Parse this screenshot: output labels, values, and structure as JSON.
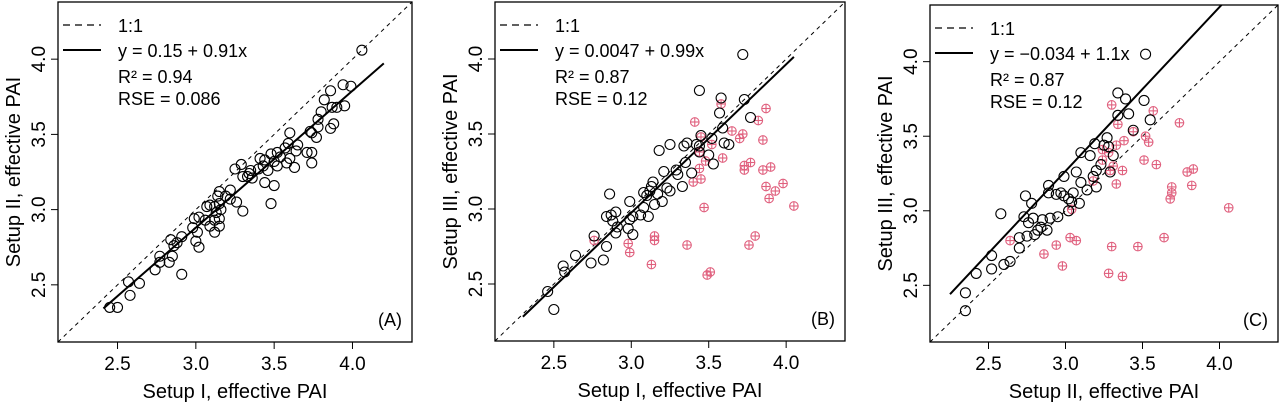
{
  "chart_data": [
    {
      "type": "scatter",
      "panel_label": "(A)",
      "xlabel": "Setup I, effective PAI",
      "ylabel": "Setup II, effective PAI",
      "xlim": [
        2.12,
        4.38
      ],
      "ylim": [
        2.12,
        4.38
      ],
      "xticks": [
        "2.5",
        "3.0",
        "3.5",
        "4.0"
      ],
      "yticks": [
        "2.5",
        "3.0",
        "3.5",
        "4.0"
      ],
      "legend": {
        "placement": "top-left",
        "entries": [
          "1:1",
          "y = 0.15 + 0.91x"
        ],
        "r2": "R² = 0.94",
        "rse": "RSE = 0.086"
      },
      "fit": {
        "intercept": 0.15,
        "slope": 0.91,
        "x_range": [
          2.41,
          4.2
        ]
      },
      "colors": {
        "points": "#000000",
        "flagged": "#e0607e"
      },
      "points": [
        [
          4.06,
          4.06
        ],
        [
          3.99,
          3.82
        ],
        [
          3.94,
          3.83
        ],
        [
          3.86,
          3.79
        ],
        [
          3.82,
          3.73
        ],
        [
          3.8,
          3.65
        ],
        [
          3.95,
          3.69
        ],
        [
          3.9,
          3.68
        ],
        [
          3.87,
          3.68
        ],
        [
          3.78,
          3.6
        ],
        [
          3.78,
          3.55
        ],
        [
          3.86,
          3.54
        ],
        [
          3.88,
          3.57
        ],
        [
          3.73,
          3.52
        ],
        [
          3.77,
          3.48
        ],
        [
          3.74,
          3.51
        ],
        [
          3.6,
          3.51
        ],
        [
          3.59,
          3.44
        ],
        [
          3.65,
          3.43
        ],
        [
          3.64,
          3.39
        ],
        [
          3.71,
          3.38
        ],
        [
          3.74,
          3.38
        ],
        [
          3.74,
          3.31
        ],
        [
          3.63,
          3.28
        ],
        [
          3.6,
          3.34
        ],
        [
          3.58,
          3.31
        ],
        [
          3.57,
          3.41
        ],
        [
          3.54,
          3.35
        ],
        [
          3.52,
          3.38
        ],
        [
          3.48,
          3.37
        ],
        [
          3.52,
          3.29
        ],
        [
          3.5,
          3.32
        ],
        [
          3.46,
          3.26
        ],
        [
          3.44,
          3.33
        ],
        [
          3.43,
          3.29
        ],
        [
          3.41,
          3.34
        ],
        [
          3.4,
          3.27
        ],
        [
          3.44,
          3.18
        ],
        [
          3.5,
          3.16
        ],
        [
          3.48,
          3.04
        ],
        [
          3.35,
          3.26
        ],
        [
          3.34,
          3.24
        ],
        [
          3.36,
          3.21
        ],
        [
          3.33,
          3.22
        ],
        [
          3.3,
          3.22
        ],
        [
          3.29,
          3.3
        ],
        [
          3.25,
          3.27
        ],
        [
          3.26,
          3.05
        ],
        [
          3.3,
          2.99
        ],
        [
          3.22,
          3.13
        ],
        [
          3.19,
          3.09
        ],
        [
          3.15,
          3.12
        ],
        [
          3.14,
          3.09
        ],
        [
          3.22,
          3.07
        ],
        [
          3.15,
          3.04
        ],
        [
          3.16,
          3.0
        ],
        [
          3.13,
          2.98
        ],
        [
          3.12,
          3.02
        ],
        [
          3.09,
          3.03
        ],
        [
          3.07,
          3.02
        ],
        [
          3.15,
          2.94
        ],
        [
          3.12,
          2.93
        ],
        [
          3.15,
          2.89
        ],
        [
          3.09,
          2.89
        ],
        [
          3.12,
          2.85
        ],
        [
          3.06,
          2.93
        ],
        [
          3.02,
          2.95
        ],
        [
          2.99,
          2.94
        ],
        [
          2.98,
          2.88
        ],
        [
          3.01,
          2.85
        ],
        [
          3.0,
          2.79
        ],
        [
          3.02,
          2.75
        ],
        [
          2.91,
          2.82
        ],
        [
          2.88,
          2.78
        ],
        [
          2.86,
          2.76
        ],
        [
          2.84,
          2.8
        ],
        [
          2.85,
          2.69
        ],
        [
          2.83,
          2.65
        ],
        [
          2.77,
          2.69
        ],
        [
          2.77,
          2.65
        ],
        [
          2.74,
          2.6
        ],
        [
          2.91,
          2.57
        ],
        [
          2.64,
          2.51
        ],
        [
          2.57,
          2.52
        ],
        [
          2.58,
          2.43
        ],
        [
          2.5,
          2.35
        ],
        [
          2.45,
          2.35
        ]
      ],
      "flagged_points": []
    },
    {
      "type": "scatter",
      "panel_label": "(B)",
      "xlabel": "Setup I, effective PAI",
      "ylabel": "Setup III, effective PAI",
      "xlim": [
        2.12,
        4.38
      ],
      "ylim": [
        2.12,
        4.38
      ],
      "xticks": [
        "2.5",
        "3.0",
        "3.5",
        "4.0"
      ],
      "yticks": [
        "2.5",
        "3.0",
        "3.5",
        "4.0"
      ],
      "legend": {
        "placement": "top-left",
        "entries": [
          "1:1",
          "y = 0.0047 + 0.99x"
        ],
        "r2": "R² = 0.87",
        "rse": "RSE = 0.12"
      },
      "fit": {
        "intercept": 0.0047,
        "slope": 0.99,
        "x_range": [
          2.3,
          4.05
        ]
      },
      "colors": {
        "points": "#000000",
        "flagged": "#e0607e"
      },
      "points": [
        [
          3.72,
          4.03
        ],
        [
          3.44,
          3.79
        ],
        [
          3.58,
          3.74
        ],
        [
          3.73,
          3.73
        ],
        [
          3.57,
          3.64
        ],
        [
          3.77,
          3.61
        ],
        [
          3.59,
          3.54
        ],
        [
          3.45,
          3.49
        ],
        [
          3.52,
          3.47
        ],
        [
          3.6,
          3.44
        ],
        [
          3.63,
          3.43
        ],
        [
          3.36,
          3.44
        ],
        [
          3.34,
          3.42
        ],
        [
          3.25,
          3.43
        ],
        [
          3.44,
          3.42
        ],
        [
          3.42,
          3.43
        ],
        [
          3.44,
          3.38
        ],
        [
          3.18,
          3.39
        ],
        [
          3.5,
          3.36
        ],
        [
          3.53,
          3.3
        ],
        [
          3.35,
          3.31
        ],
        [
          3.29,
          3.26
        ],
        [
          3.3,
          3.23
        ],
        [
          3.39,
          3.24
        ],
        [
          3.21,
          3.25
        ],
        [
          3.33,
          3.15
        ],
        [
          3.23,
          3.14
        ],
        [
          3.25,
          3.12
        ],
        [
          3.14,
          3.18
        ],
        [
          3.13,
          3.15
        ],
        [
          3.12,
          3.12
        ],
        [
          3.08,
          3.11
        ],
        [
          3.17,
          3.1
        ],
        [
          3.1,
          3.09
        ],
        [
          3.15,
          3.03
        ],
        [
          3.2,
          3.05
        ],
        [
          3.08,
          3.01
        ],
        [
          3.06,
          2.96
        ],
        [
          3.11,
          2.95
        ],
        [
          2.99,
          3.05
        ],
        [
          3.01,
          2.95
        ],
        [
          2.99,
          2.93
        ],
        [
          2.98,
          2.87
        ],
        [
          3.01,
          2.83
        ],
        [
          2.86,
          3.1
        ],
        [
          2.84,
          2.95
        ],
        [
          2.87,
          2.96
        ],
        [
          2.9,
          2.98
        ],
        [
          2.88,
          2.92
        ],
        [
          2.9,
          2.84
        ],
        [
          2.91,
          2.88
        ],
        [
          2.76,
          2.82
        ],
        [
          2.84,
          2.75
        ],
        [
          2.82,
          2.66
        ],
        [
          2.74,
          2.64
        ],
        [
          2.64,
          2.69
        ],
        [
          2.56,
          2.62
        ],
        [
          2.57,
          2.58
        ],
        [
          2.46,
          2.45
        ],
        [
          2.5,
          2.33
        ]
      ],
      "flagged_points": [
        [
          3.58,
          3.7
        ],
        [
          3.87,
          3.67
        ],
        [
          3.41,
          3.58
        ],
        [
          3.82,
          3.59
        ],
        [
          3.65,
          3.52
        ],
        [
          3.72,
          3.5
        ],
        [
          3.7,
          3.47
        ],
        [
          3.85,
          3.46
        ],
        [
          3.45,
          3.48
        ],
        [
          3.52,
          3.43
        ],
        [
          3.44,
          3.38
        ],
        [
          3.48,
          3.32
        ],
        [
          3.59,
          3.34
        ],
        [
          3.73,
          3.29
        ],
        [
          3.73,
          3.26
        ],
        [
          3.77,
          3.31
        ],
        [
          3.9,
          3.28
        ],
        [
          3.85,
          3.26
        ],
        [
          3.44,
          3.27
        ],
        [
          3.45,
          3.2
        ],
        [
          3.4,
          3.18
        ],
        [
          3.87,
          3.15
        ],
        [
          3.98,
          3.17
        ],
        [
          3.93,
          3.12
        ],
        [
          3.89,
          3.07
        ],
        [
          4.05,
          3.02
        ],
        [
          3.47,
          3.01
        ],
        [
          2.76,
          2.79
        ],
        [
          2.98,
          2.77
        ],
        [
          2.99,
          2.71
        ],
        [
          3.15,
          2.82
        ],
        [
          3.15,
          2.79
        ],
        [
          3.13,
          2.63
        ],
        [
          3.36,
          2.76
        ],
        [
          3.8,
          2.82
        ],
        [
          3.76,
          2.76
        ],
        [
          3.51,
          2.58
        ],
        [
          3.49,
          2.56
        ]
      ]
    },
    {
      "type": "scatter",
      "panel_label": "(C)",
      "xlabel": "Setup II, effective PAI",
      "ylabel": "Setup III, effective PAI",
      "xlim": [
        2.12,
        4.38
      ],
      "ylim": [
        2.12,
        4.38
      ],
      "xticks": [
        "2.5",
        "3.0",
        "3.5",
        "4.0"
      ],
      "yticks": [
        "2.5",
        "3.0",
        "3.5",
        "4.0"
      ],
      "legend": {
        "placement": "top-left",
        "entries": [
          "1:1",
          "y = −0.034 + 1.1x"
        ],
        "r2": "R² = 0.87",
        "rse": "RSE = 0.12"
      },
      "fit": {
        "intercept": -0.034,
        "slope": 1.1,
        "x_range": [
          2.25,
          4.05
        ]
      },
      "colors": {
        "points": "#000000",
        "flagged": "#e0607e"
      },
      "points": [
        [
          3.52,
          4.05
        ],
        [
          3.34,
          3.79
        ],
        [
          3.39,
          3.75
        ],
        [
          3.51,
          3.74
        ],
        [
          3.34,
          3.64
        ],
        [
          3.41,
          3.65
        ],
        [
          3.55,
          3.61
        ],
        [
          3.44,
          3.54
        ],
        [
          3.27,
          3.49
        ],
        [
          3.19,
          3.45
        ],
        [
          3.25,
          3.44
        ],
        [
          3.28,
          3.43
        ],
        [
          3.1,
          3.39
        ],
        [
          3.16,
          3.37
        ],
        [
          3.31,
          3.37
        ],
        [
          3.23,
          3.31
        ],
        [
          3.2,
          3.27
        ],
        [
          3.29,
          3.26
        ],
        [
          3.07,
          3.26
        ],
        [
          2.99,
          3.23
        ],
        [
          3.1,
          3.19
        ],
        [
          3.18,
          3.23
        ],
        [
          3.14,
          3.14
        ],
        [
          3.2,
          3.16
        ],
        [
          2.89,
          3.17
        ],
        [
          2.89,
          3.12
        ],
        [
          2.94,
          3.11
        ],
        [
          2.97,
          3.12
        ],
        [
          2.99,
          3.1
        ],
        [
          3.05,
          3.12
        ],
        [
          3.02,
          3.08
        ],
        [
          3.04,
          3.06
        ],
        [
          3.09,
          3.05
        ],
        [
          2.74,
          3.1
        ],
        [
          2.78,
          3.05
        ],
        [
          2.58,
          2.98
        ],
        [
          3.02,
          3.0
        ],
        [
          2.73,
          2.96
        ],
        [
          2.79,
          2.95
        ],
        [
          2.85,
          2.94
        ],
        [
          2.9,
          2.95
        ],
        [
          2.95,
          2.96
        ],
        [
          2.76,
          2.92
        ],
        [
          2.84,
          2.89
        ],
        [
          2.82,
          2.87
        ],
        [
          2.88,
          2.87
        ],
        [
          2.7,
          2.82
        ],
        [
          2.75,
          2.83
        ],
        [
          2.8,
          2.84
        ],
        [
          2.7,
          2.75
        ],
        [
          2.52,
          2.7
        ],
        [
          2.6,
          2.64
        ],
        [
          2.64,
          2.66
        ],
        [
          2.52,
          2.61
        ],
        [
          2.42,
          2.58
        ],
        [
          2.35,
          2.45
        ],
        [
          2.35,
          2.33
        ]
      ],
      "flagged_points": [
        [
          3.3,
          3.71
        ],
        [
          3.57,
          3.67
        ],
        [
          3.74,
          3.59
        ],
        [
          3.34,
          3.58
        ],
        [
          3.44,
          3.53
        ],
        [
          3.52,
          3.5
        ],
        [
          3.54,
          3.46
        ],
        [
          3.38,
          3.47
        ],
        [
          3.33,
          3.44
        ],
        [
          3.28,
          3.39
        ],
        [
          3.24,
          3.41
        ],
        [
          3.24,
          3.34
        ],
        [
          3.51,
          3.34
        ],
        [
          3.59,
          3.31
        ],
        [
          3.31,
          3.3
        ],
        [
          3.29,
          3.27
        ],
        [
          3.37,
          3.27
        ],
        [
          3.79,
          3.26
        ],
        [
          3.83,
          3.28
        ],
        [
          3.18,
          3.2
        ],
        [
          3.33,
          3.18
        ],
        [
          3.82,
          3.17
        ],
        [
          3.69,
          3.16
        ],
        [
          3.69,
          3.12
        ],
        [
          3.68,
          3.08
        ],
        [
          4.06,
          3.02
        ],
        [
          3.04,
          3.01
        ],
        [
          2.64,
          2.8
        ],
        [
          3.03,
          2.82
        ],
        [
          3.07,
          2.8
        ],
        [
          2.94,
          2.77
        ],
        [
          2.86,
          2.71
        ],
        [
          2.98,
          2.63
        ],
        [
          3.3,
          2.76
        ],
        [
          3.47,
          2.76
        ],
        [
          3.64,
          2.82
        ],
        [
          3.28,
          2.58
        ],
        [
          3.37,
          2.56
        ]
      ]
    }
  ]
}
